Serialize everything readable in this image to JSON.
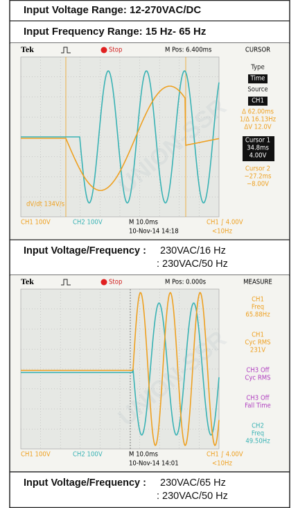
{
  "header": {
    "lines": [
      "Input Voltage Range: 12-270VAC/DC",
      "Input Frequency Range: 15 Hz- 65 Hz"
    ]
  },
  "watermark": "UNION-SSR",
  "scopes": [
    {
      "brand": "Tek",
      "trigger_state": "Stop",
      "position": "M Pos: 6.400ms",
      "menu_title": "CURSOR",
      "grid_note": "dV/dt 134V/s",
      "side_panel": [
        {
          "style": "label",
          "lines": [
            "Type"
          ]
        },
        {
          "style": "box",
          "lines": [
            "Time"
          ]
        },
        {
          "style": "label",
          "lines": [
            "Source"
          ]
        },
        {
          "style": "box",
          "lines": [
            "CH1"
          ]
        },
        {
          "style": "orange",
          "lines": [
            "Δ 62.00ms",
            "1/Δ 16.13Hz",
            "ΔV 12.0V"
          ]
        },
        {
          "style": "highlight",
          "lines": [
            "Cursor 1",
            "34.8ms",
            "4.00V"
          ]
        },
        {
          "style": "orange",
          "lines": [
            "Cursor 2",
            "−27.2ms",
            "−8.00V"
          ]
        }
      ],
      "bottom": {
        "ch1": "CH1  100V",
        "ch2": "CH2  100V",
        "timebase": "M 10.0ms",
        "timestamp": "10-Nov-14 14:18",
        "trigger": "CH1 ∫ 4.00V",
        "freq": "<10Hz"
      },
      "caption": {
        "label": "Input Voltage/Frequency :",
        "values": [
          "230VAC/16 Hz",
          ": 230VAC/50 Hz"
        ]
      }
    },
    {
      "brand": "Tek",
      "trigger_state": "Stop",
      "position": "M Pos: 0.000s",
      "menu_title": "MEASURE",
      "side_panel": [
        {
          "style": "orange",
          "lines": [
            "CH1",
            "Freq",
            "65.88Hz"
          ]
        },
        {
          "style": "orange",
          "lines": [
            "CH1",
            "Cyc RMS",
            "231V"
          ]
        },
        {
          "style": "purple",
          "lines": [
            "CH3 Off",
            "Cyc RMS"
          ]
        },
        {
          "style": "purple",
          "lines": [
            "CH3 Off",
            "Fall Time"
          ]
        },
        {
          "style": "cyan",
          "lines": [
            "CH2",
            "Freq",
            "49.50Hz"
          ]
        }
      ],
      "bottom": {
        "ch1": "CH1  100V",
        "ch2": "CH2  100V",
        "timebase": "M 10.0ms",
        "timestamp": "10-Nov-14 14:01",
        "trigger": "CH1 ∫ 4.00V",
        "freq": "<10Hz"
      },
      "caption": {
        "label": "Input Voltage/Frequency :",
        "values": [
          "230VAC/65 Hz",
          ": 230VAC/50 Hz"
        ]
      }
    }
  ]
}
